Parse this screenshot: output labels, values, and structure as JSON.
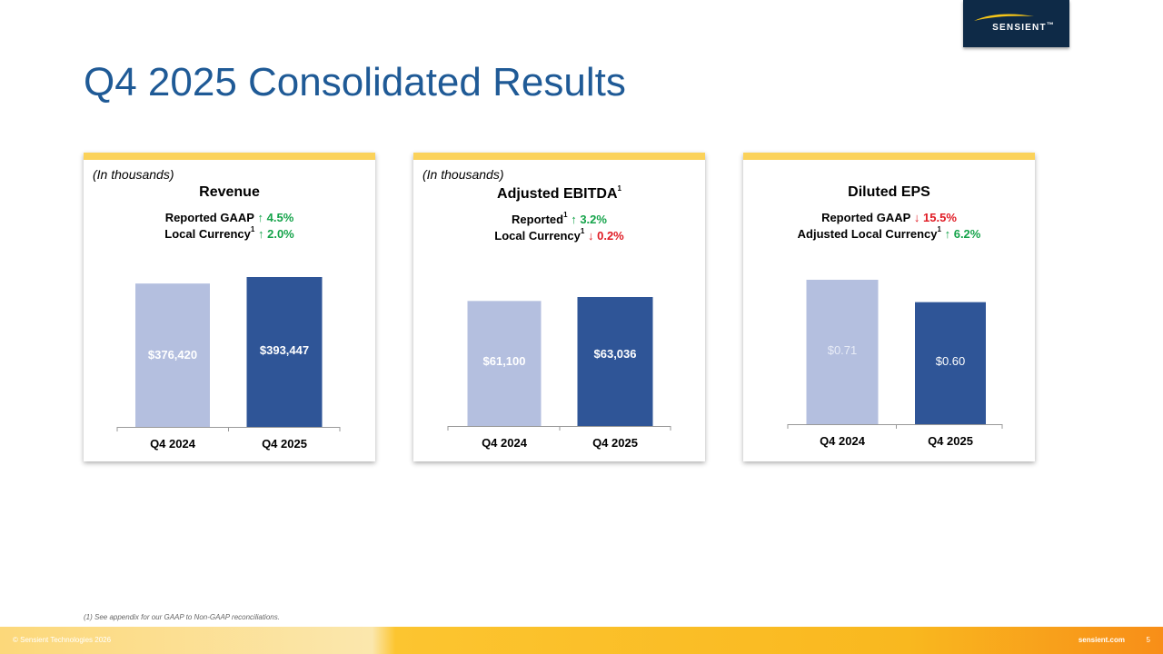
{
  "logo": {
    "text": "SENSIENT",
    "mark": "™"
  },
  "title": "Q4 2025 Consolidated Results",
  "colors": {
    "title": "#1f5a96",
    "bar_prior": "#b4bfdf",
    "bar_current": "#2f5597",
    "accent": "#fbd25a",
    "up": "#15a34a",
    "down": "#e01b24",
    "logo_bg": "#0e2a47"
  },
  "cards": [
    {
      "units": "(In thousands)",
      "title": "Revenue",
      "title_sup": "",
      "metrics": [
        {
          "label": "Reported GAAP",
          "sup": "",
          "arrow": "↑",
          "direction": "up",
          "value": "4.5%"
        },
        {
          "label": "Local Currency",
          "sup": "1",
          "arrow": "↑",
          "direction": "up",
          "value": "2.0%"
        }
      ]
    },
    {
      "units": "(In thousands)",
      "title": "Adjusted EBITDA",
      "title_sup": "1",
      "metrics": [
        {
          "label": "Reported",
          "sup": "1",
          "arrow": "↑",
          "direction": "up",
          "value": "3.2%"
        },
        {
          "label": "Local Currency",
          "sup": "1",
          "arrow": "↓",
          "direction": "down",
          "value": "0.2%"
        }
      ]
    },
    {
      "units": "",
      "title": "Diluted EPS",
      "title_sup": "",
      "metrics": [
        {
          "label": "Reported GAAP",
          "sup": "",
          "arrow": "↓",
          "direction": "down",
          "value": "15.5%"
        },
        {
          "label": "Adjusted Local Currency",
          "sup": "1",
          "arrow": "↑",
          "direction": "up",
          "value": "6.2%"
        }
      ]
    }
  ],
  "chart_data": [
    {
      "type": "bar",
      "title": "Revenue",
      "categories": [
        "Q4 2024",
        "Q4 2025"
      ],
      "values": [
        376420,
        393447
      ],
      "labels": [
        "$376,420",
        "$393,447"
      ],
      "ylim": [
        0,
        393447
      ],
      "grid": false
    },
    {
      "type": "bar",
      "title": "Adjusted EBITDA",
      "categories": [
        "Q4 2024",
        "Q4 2025"
      ],
      "values": [
        61100,
        63036
      ],
      "labels": [
        "$61,100",
        "$63,036"
      ],
      "ylim": [
        0,
        63036
      ],
      "grid": false
    },
    {
      "type": "bar",
      "title": "Diluted EPS",
      "categories": [
        "Q4 2024",
        "Q4 2025"
      ],
      "values": [
        0.71,
        0.6
      ],
      "labels": [
        "$0.71",
        "$0.60"
      ],
      "ylim": [
        0,
        0.71
      ],
      "grid": false
    }
  ],
  "footnote": "(1) See appendix for our GAAP to Non-GAAP reconciliations.",
  "footer": {
    "copyright": "© Sensient Technologies 2026",
    "site": "sensient.com",
    "page": "5"
  }
}
